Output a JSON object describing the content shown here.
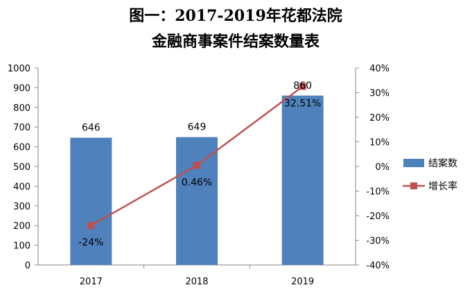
{
  "chart_data": {
    "type": "bar",
    "title_lines": [
      "图一：2017-2019年花都法院",
      "金融商事案件结案数量表"
    ],
    "categories": [
      "2017",
      "2018",
      "2019"
    ],
    "series": [
      {
        "name": "结案数",
        "kind": "bar",
        "axis": "left",
        "values": [
          646,
          649,
          860
        ],
        "labels": [
          "646",
          "649",
          "860"
        ]
      },
      {
        "name": "增长率",
        "kind": "line",
        "axis": "right",
        "values": [
          -24,
          0.46,
          32.51
        ],
        "labels": [
          "-24%",
          "0.46%",
          "32.51%"
        ]
      }
    ],
    "y_left": {
      "min": 0,
      "max": 1000,
      "ticks": [
        "0",
        "100",
        "200",
        "300",
        "400",
        "500",
        "600",
        "700",
        "800",
        "900",
        "1000"
      ]
    },
    "y_right": {
      "min": -40,
      "max": 40,
      "ticks": [
        "-40%",
        "-30%",
        "-20%",
        "-10%",
        "0%",
        "10%",
        "20%",
        "30%",
        "40%"
      ]
    },
    "legend": "right",
    "grid": false,
    "colors": {
      "bar": "#4f81bd",
      "line": "#c0504d"
    }
  }
}
